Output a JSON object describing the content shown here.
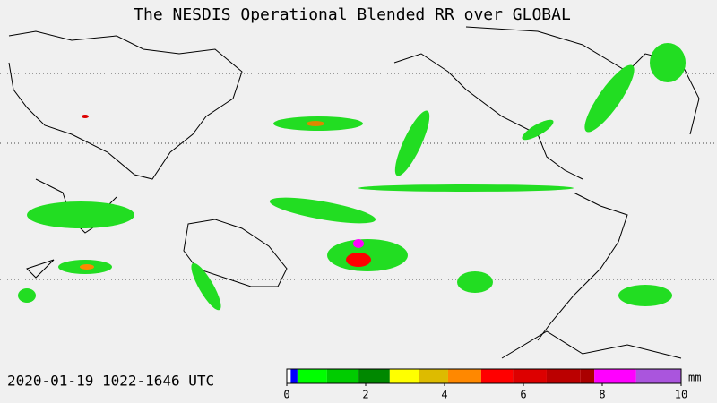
{
  "title": "The NESDIS  Operational  Blended RR over GLOBAL",
  "timestamp": "2020-01-19   1022-1646  UTC",
  "colorbar": {
    "unit": "mm",
    "lim": [
      0,
      10
    ],
    "ticks": [
      0,
      2,
      4,
      6,
      8,
      10
    ],
    "bins": [
      0,
      0.1,
      0.27,
      1.02,
      1.82,
      2.61,
      3.36,
      4.09,
      4.93,
      5.73,
      6.59,
      7.45,
      7.8,
      8.86,
      10
    ],
    "colors": [
      "#ffffff",
      "#0000ff",
      "#00ff00",
      "#00cc00",
      "#008800",
      "#ffff00",
      "#ddbb00",
      "#ff8800",
      "#ff0000",
      "#dd0000",
      "#bb0000",
      "#aa0000",
      "#ff00ff",
      "#aa55dd"
    ]
  }
}
